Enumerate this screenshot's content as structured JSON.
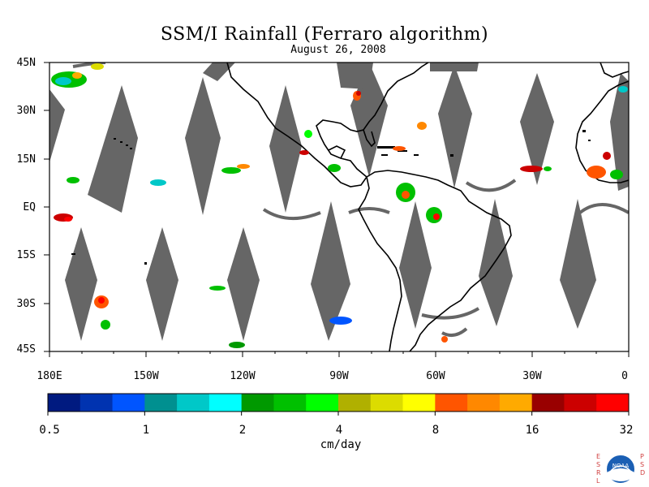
{
  "title": "SSM/I Rainfall (Ferraro algorithm)",
  "subtitle": "August 26, 2008",
  "y_axis_labels": [
    "45N",
    "30N",
    "15N",
    "EQ",
    "15S",
    "30S",
    "45S"
  ],
  "x_axis_labels": [
    "180E",
    "150W",
    "120W",
    "90W",
    "60W",
    "30W",
    "0"
  ],
  "colorbar": {
    "tick_labels": [
      "0.5",
      "1",
      "2",
      "4",
      "8",
      "16",
      "32"
    ],
    "units": "cm/day",
    "colors": [
      "#001a80",
      "#0033b0",
      "#0055ff",
      "#009090",
      "#00c8c8",
      "#00ffff",
      "#009900",
      "#00c000",
      "#00ff00",
      "#b0b000",
      "#dcdc00",
      "#ffff00",
      "#ff5500",
      "#ff8800",
      "#ffaa00",
      "#990000",
      "#cc0000",
      "#ff0000"
    ]
  },
  "map": {
    "land_color": "#ffffff",
    "no_data_color": "#666666",
    "coastline_color": "#000000",
    "lon_range": [
      -180,
      0
    ],
    "lat_range": [
      -45,
      45
    ]
  },
  "logo": {
    "left_text": "ESRL",
    "right_text": "PSD",
    "center_text": "NOAA"
  }
}
